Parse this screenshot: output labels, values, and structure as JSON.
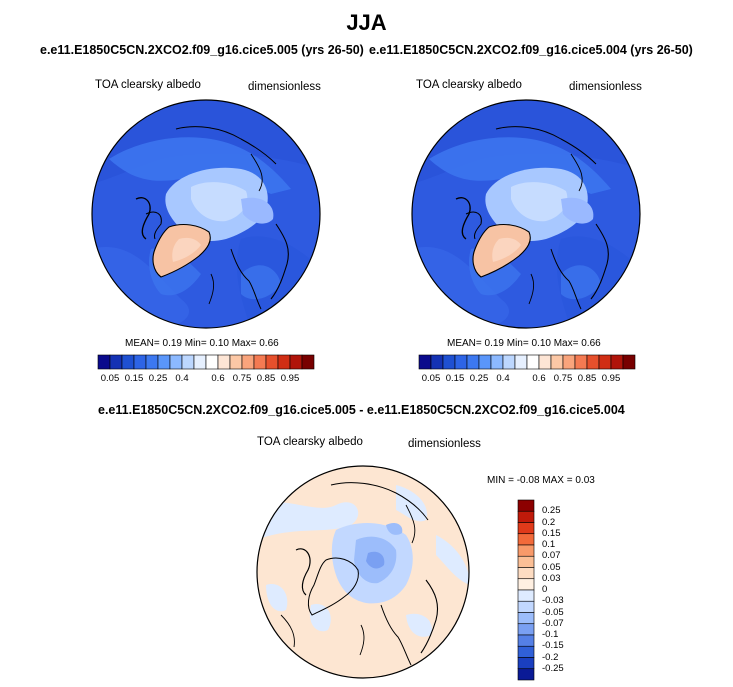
{
  "title": "JJA",
  "panels": [
    {
      "case": "e.e11.E1850C5CN.2XCO2.f09_g16.cice5.005 (yrs 26-50)",
      "variable": "TOA clearsky albedo",
      "units": "dimensionless",
      "stats": "MEAN=   0.19  Min=   0.10  Max=   0.66"
    },
    {
      "case": "e.e11.E1850C5CN.2XCO2.f09_g16.cice5.004 (yrs 26-50)",
      "variable": "TOA clearsky albedo",
      "units": "dimensionless",
      "stats": "MEAN=   0.19  Min=   0.10  Max=   0.66"
    }
  ],
  "colorbar_abs": {
    "labels": [
      "0.05",
      "0.15",
      "0.25",
      "0.4",
      "0.6",
      "0.75",
      "0.85",
      "0.95"
    ],
    "colors": [
      "#0a0a8c",
      "#1432b4",
      "#1e50d2",
      "#2d64e6",
      "#3c78f0",
      "#5a96fa",
      "#8cb9ff",
      "#bcd7ff",
      "#e6f0ff",
      "#ffffff",
      "#fde5d5",
      "#fcc8a6",
      "#f9a47c",
      "#f47a52",
      "#e6502c",
      "#d02e14",
      "#b0140a",
      "#780000"
    ]
  },
  "diff": {
    "title": "e.e11.E1850C5CN.2XCO2.f09_g16.cice5.005 - e.e11.E1850C5CN.2XCO2.f09_g16.cice5.004",
    "variable": "TOA clearsky albedo",
    "units": "dimensionless",
    "minmax": "MIN =  -0.08 MAX =   0.03"
  },
  "colorbar_diff": {
    "labels": [
      "0.25",
      "0.2",
      "0.15",
      "0.1",
      "0.07",
      "0.05",
      "0.03",
      "0",
      "-0.03",
      "-0.05",
      "-0.07",
      "-0.1",
      "-0.15",
      "-0.2",
      "-0.25"
    ],
    "colors": [
      "#8c0000",
      "#c01a0a",
      "#e03a1a",
      "#f26a3a",
      "#f89a6a",
      "#fbbf96",
      "#fddcc2",
      "#fff0e2",
      "#deebff",
      "#c2d8ff",
      "#9cbdfb",
      "#7aa0f2",
      "#5580e6",
      "#3060d8",
      "#1a3fc0",
      "#0a1a96"
    ]
  }
}
